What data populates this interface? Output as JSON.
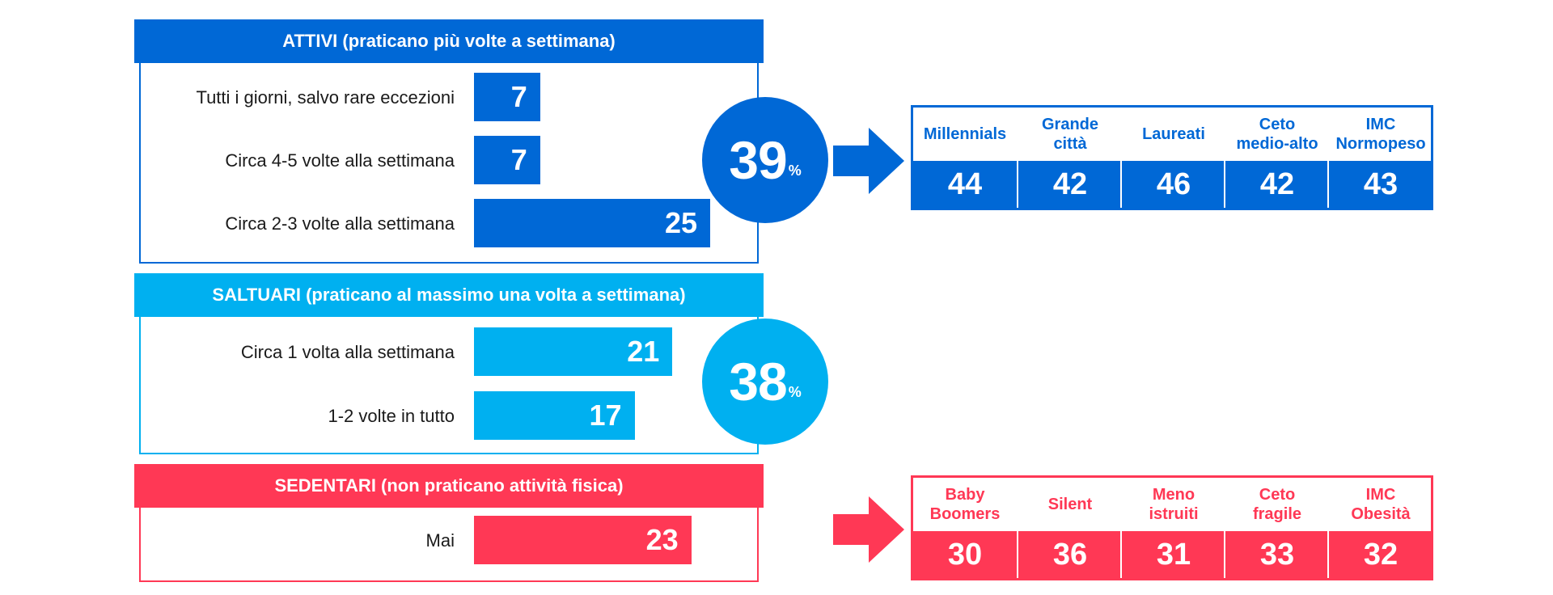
{
  "colors": {
    "attivi": "#0068D6",
    "saltuari": "#00B0F0",
    "sedentari": "#FF3855"
  },
  "chart_data": [
    {
      "type": "bar",
      "title": "ATTIVI (praticano più volte a settimana)",
      "categories": [
        "Tutti i giorni, salvo rare eccezioni",
        "Circa 4-5 volte alla settimana",
        "Circa 2-3 volte alla settimana"
      ],
      "values": [
        7,
        7,
        25
      ],
      "total": "39",
      "total_unit": "%"
    },
    {
      "type": "bar",
      "title": "SALTUARI (praticano al massimo una volta a settimana)",
      "categories": [
        "Circa 1 volta alla settimana",
        "1-2 volte in tutto"
      ],
      "values": [
        21,
        17
      ],
      "total": "38",
      "total_unit": "%"
    },
    {
      "type": "bar",
      "title": "SEDENTARI (non praticano attività fisica)",
      "categories": [
        "Mai"
      ],
      "values": [
        23
      ]
    },
    {
      "type": "table",
      "columns": [
        "Millennials",
        "Grande città",
        "Laureati",
        "Ceto medio-alto",
        "IMC Normopeso"
      ],
      "values": [
        44,
        42,
        46,
        42,
        43
      ]
    },
    {
      "type": "table",
      "columns": [
        "Baby Boomers",
        "Silent",
        "Meno istruiti",
        "Ceto fragile",
        "IMC Obesità"
      ],
      "values": [
        30,
        36,
        31,
        33,
        32
      ]
    }
  ]
}
